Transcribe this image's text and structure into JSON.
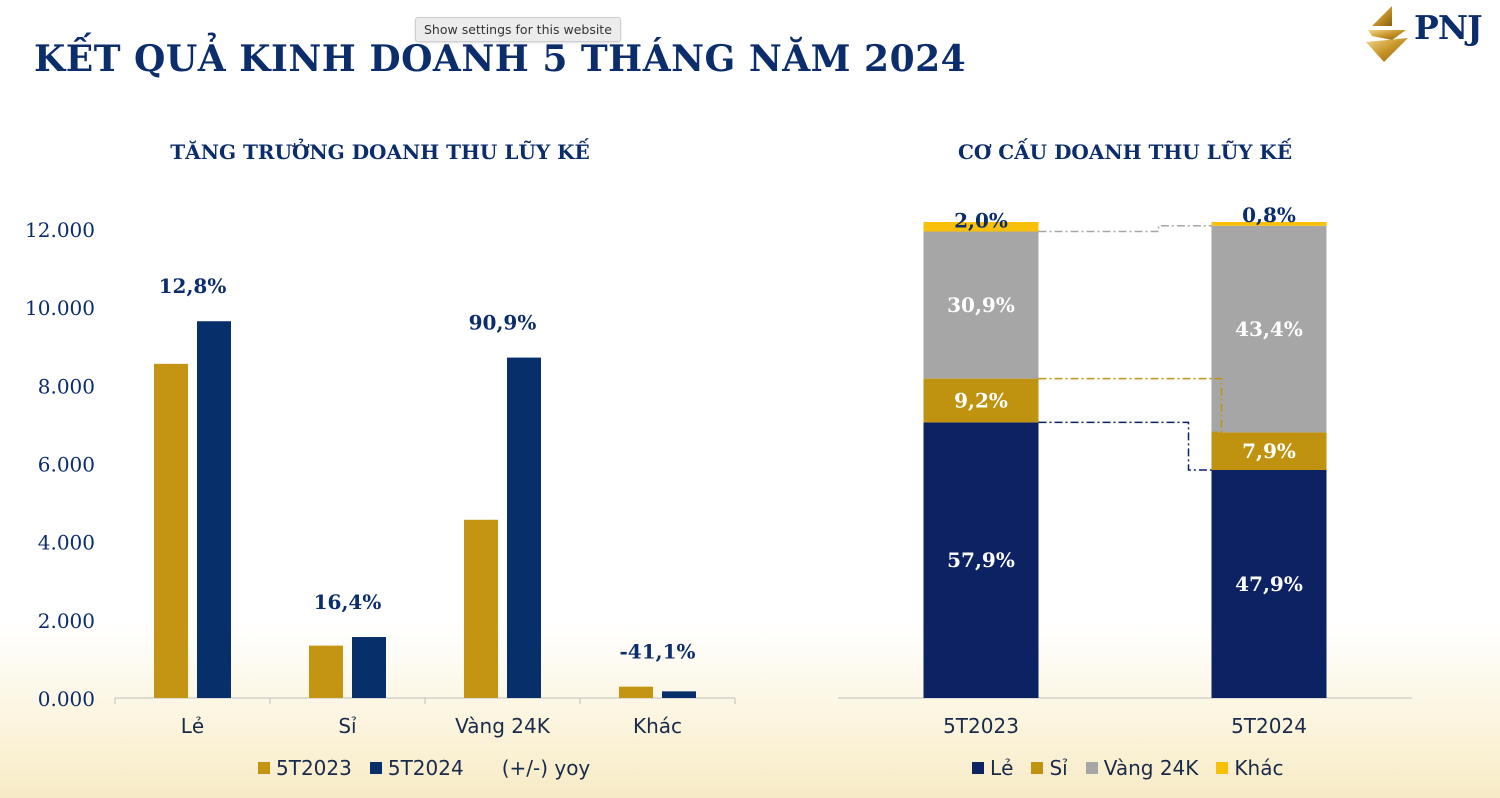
{
  "tooltip": "Show settings for this website",
  "page_title": "KẾT QUẢ KINH DOANH 5 THÁNG NĂM 2024",
  "logo_text": "PNJ",
  "colors": {
    "navy": "#0b2d6b",
    "gold": "#c39512",
    "barNavy": "#07306a",
    "stackNavy": "#0c2262",
    "stackGold": "#bf9310",
    "stackGray": "#a6a6a6",
    "stackYellow": "#f8c008"
  },
  "chart_data": [
    {
      "type": "bar",
      "title": "TĂNG TRƯỞNG DOANH THU LŨY KẾ",
      "categories": [
        "Lẻ",
        "Sỉ",
        "Vàng 24K",
        "Khác"
      ],
      "series": [
        {
          "name": "5T2023",
          "values": [
            8550,
            1340,
            4560,
            290
          ]
        },
        {
          "name": "5T2024",
          "values": [
            9640,
            1560,
            8710,
            170
          ]
        }
      ],
      "yoy_labels": [
        "12,8%",
        "16,4%",
        "90,9%",
        "-41,1%"
      ],
      "yoy_legend": "(+/-) yoy",
      "ylim": [
        0,
        12000
      ],
      "yticks": [
        0,
        2000,
        4000,
        6000,
        8000,
        10000,
        12000
      ],
      "ytick_labels": [
        "0.000",
        "2.000",
        "4.000",
        "6.000",
        "8.000",
        "10.000",
        "12.000"
      ],
      "legend_position": "bottom"
    },
    {
      "type": "bar",
      "stacked": true,
      "title": "CƠ CẤU DOANH THU LŨY KẾ",
      "categories": [
        "5T2023",
        "5T2024"
      ],
      "series": [
        {
          "name": "Lẻ",
          "values": [
            57.9,
            47.9
          ],
          "labels": [
            "57,9%",
            "47,9%"
          ]
        },
        {
          "name": "Sỉ",
          "values": [
            9.2,
            7.9
          ],
          "labels": [
            "9,2%",
            "7,9%"
          ]
        },
        {
          "name": "Vàng 24K",
          "values": [
            30.9,
            43.4
          ],
          "labels": [
            "30,9%",
            "43,4%"
          ]
        },
        {
          "name": "Khác",
          "values": [
            2.0,
            0.8
          ],
          "labels": [
            "2,0%",
            "0,8%"
          ]
        }
      ],
      "legend_position": "bottom"
    }
  ]
}
